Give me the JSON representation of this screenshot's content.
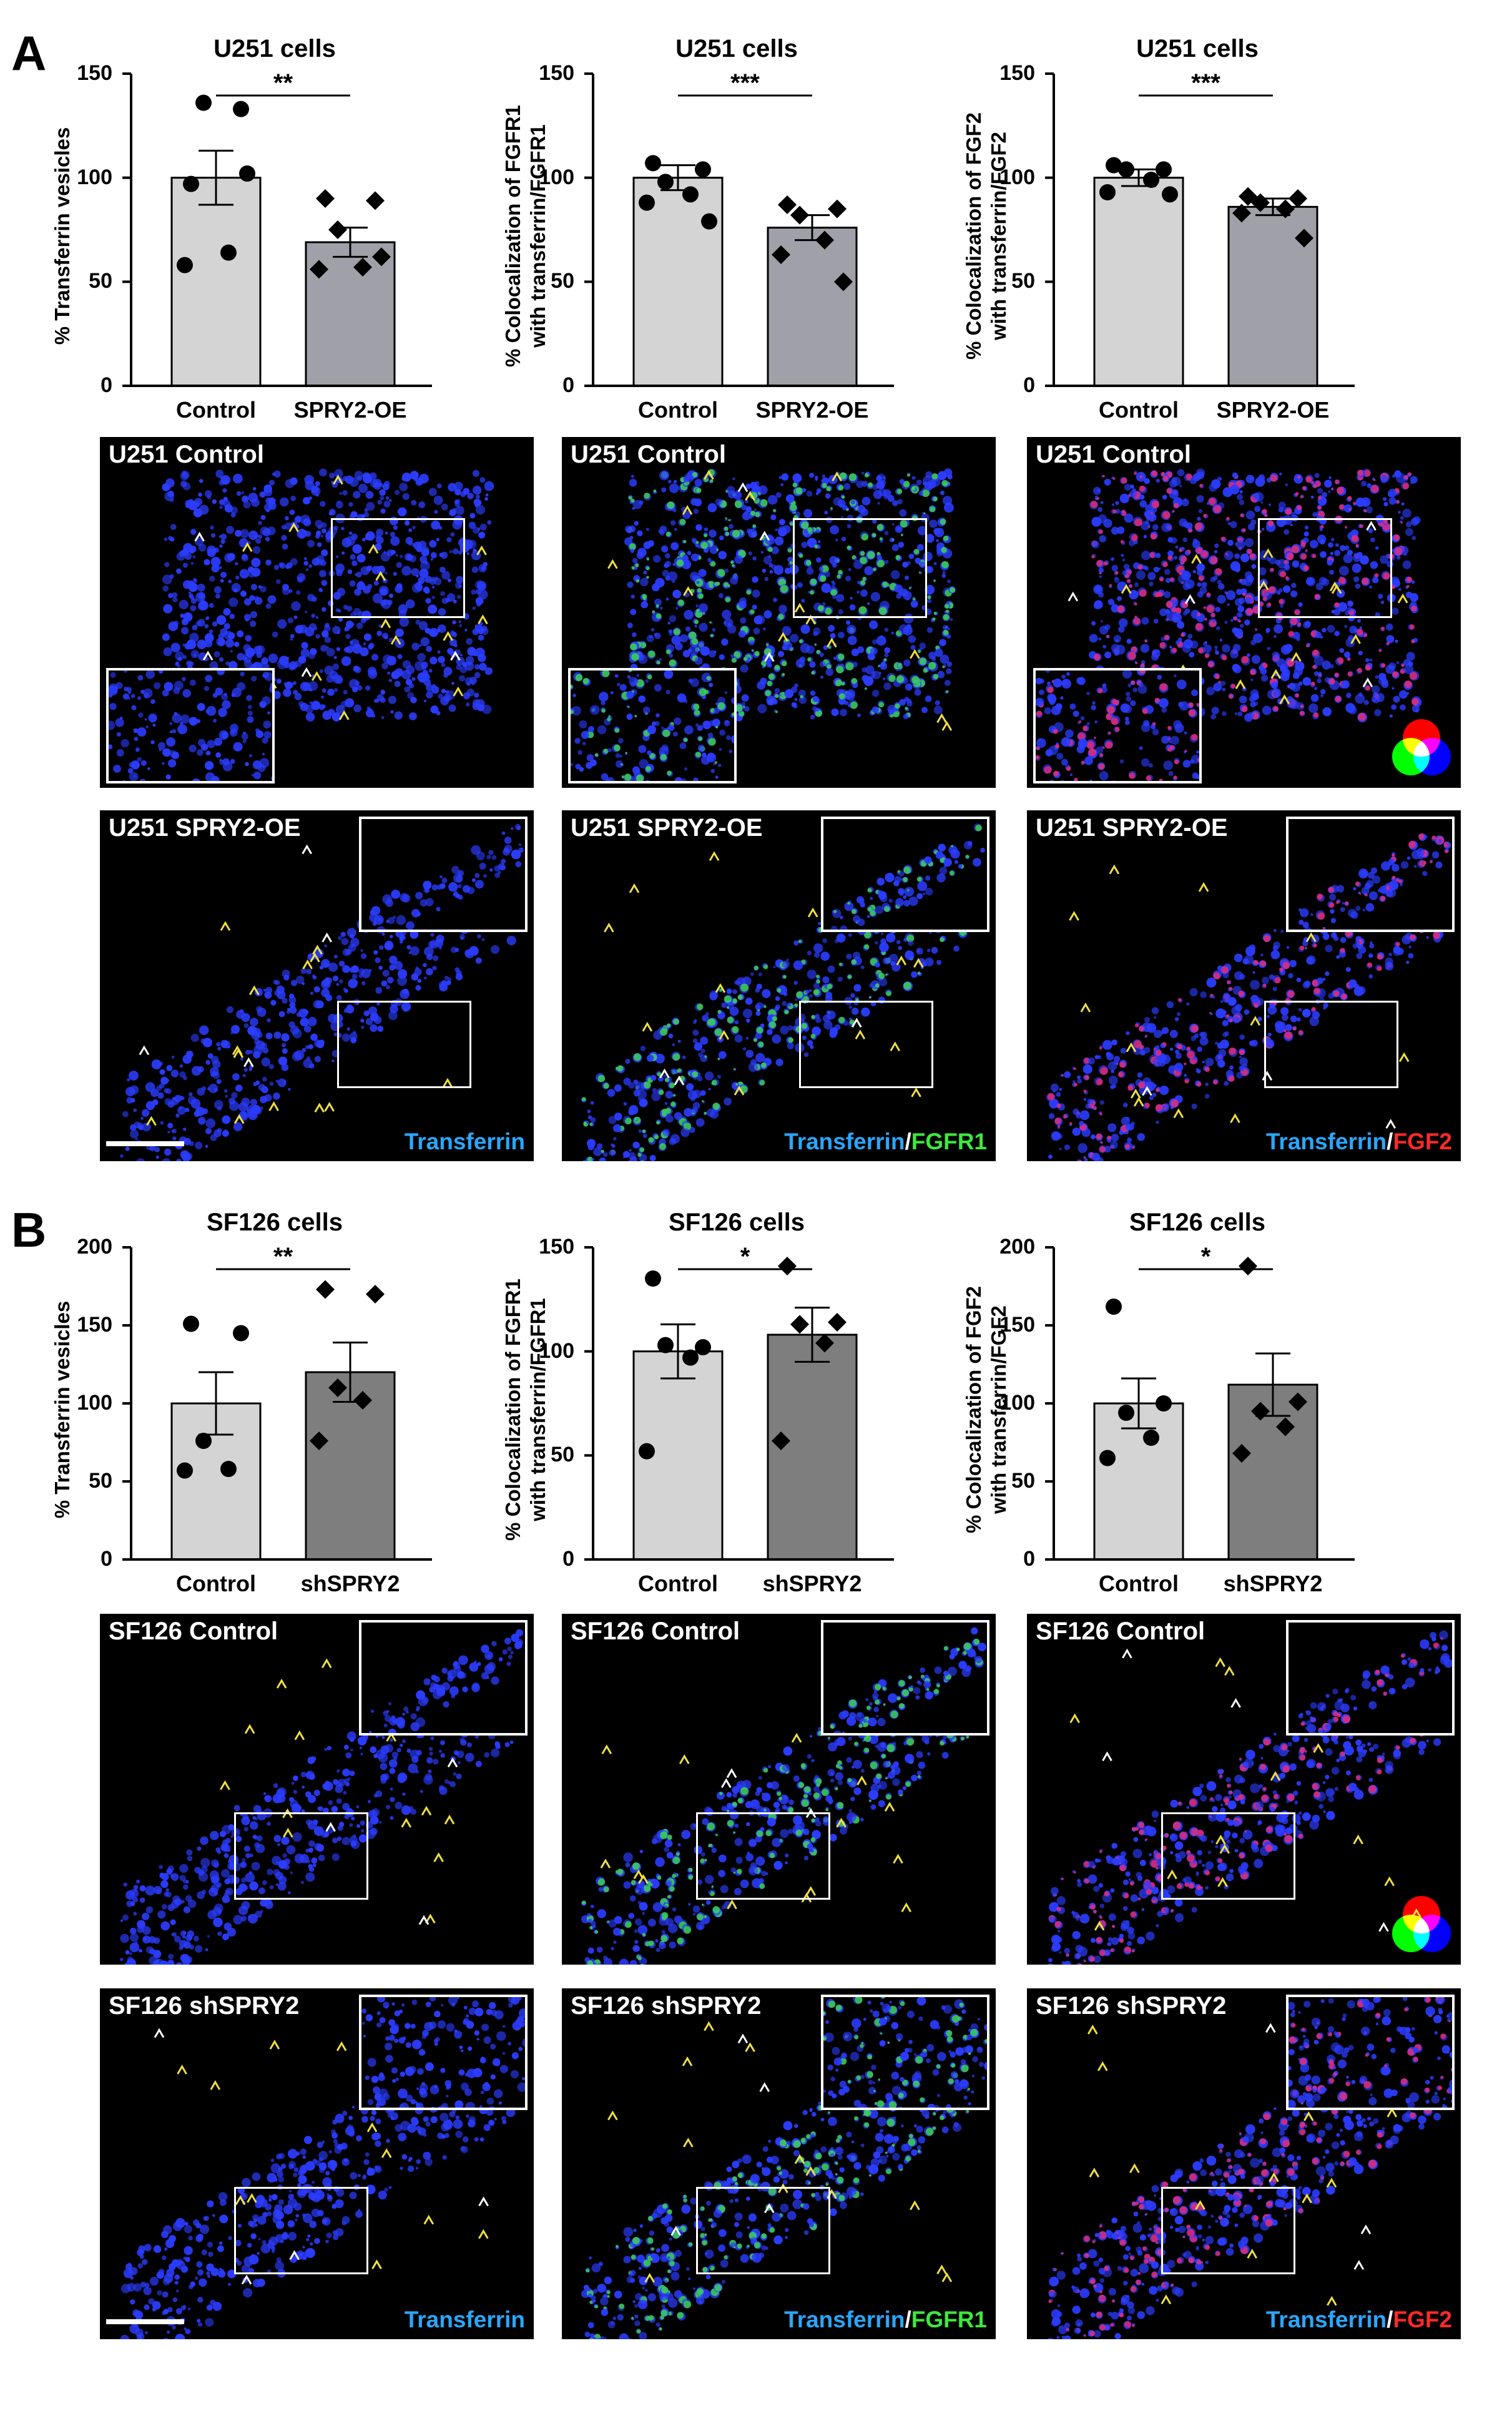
{
  "panels": [
    {
      "letter": "A",
      "charts": [
        {
          "title": "U251 cells",
          "ylabel_1": "% Transferrin vesicles",
          "ylabel_2": "",
          "ticks": [
            "0",
            "50",
            "100",
            "150"
          ],
          "ymax": 150,
          "sig": "**",
          "categories": [
            "Control",
            "SPRY2-OE"
          ],
          "means": [
            100,
            69
          ],
          "sem": [
            13,
            7
          ],
          "control_points": [
            97,
            133,
            136,
            64,
            58,
            102
          ],
          "treat_points": [
            90,
            89,
            75,
            57,
            56,
            62
          ]
        },
        {
          "title": "U251 cells",
          "ylabel_1": "% Colocalization of FGFR1",
          "ylabel_2": "with transferrin/FGFR1",
          "ticks": [
            "0",
            "50",
            "100",
            "150"
          ],
          "ymax": 150,
          "sig": "***",
          "categories": [
            "Control",
            "SPRY2-OE"
          ],
          "means": [
            100,
            76
          ],
          "sem": [
            6,
            6
          ],
          "control_points": [
            107,
            104,
            98,
            92,
            88,
            79
          ],
          "treat_points": [
            87,
            85,
            82,
            70,
            63,
            50
          ]
        },
        {
          "title": "U251 cells",
          "ylabel_1": "% Colocalization of FGF2",
          "ylabel_2": "with transferrin/FGF2",
          "ticks": [
            "0",
            "50",
            "100",
            "150"
          ],
          "ymax": 150,
          "sig": "***",
          "categories": [
            "Control",
            "SPRY2-OE"
          ],
          "means": [
            100,
            86
          ],
          "sem": [
            4,
            4
          ],
          "control_points": [
            106,
            104,
            104,
            99,
            93,
            92
          ],
          "treat_points": [
            91,
            90,
            88,
            85,
            83,
            71
          ]
        }
      ]
    },
    {
      "letter": "B",
      "charts": [
        {
          "title": "SF126 cells",
          "ylabel_1": "% Transferrin vesicles",
          "ylabel_2": "",
          "ticks": [
            "0",
            "50",
            "100",
            "150",
            "200"
          ],
          "ymax": 200,
          "sig": "**",
          "categories": [
            "Control",
            "shSPRY2"
          ],
          "means": [
            100,
            120
          ],
          "sem": [
            20,
            19
          ],
          "control_points": [
            151,
            145,
            76,
            58,
            57
          ],
          "treat_points": [
            173,
            170,
            110,
            102,
            76
          ]
        },
        {
          "title": "SF126 cells",
          "ylabel_1": "% Colocalization of FGFR1",
          "ylabel_2": "with transferrin/FGFR1",
          "ticks": [
            "0",
            "50",
            "100",
            "150"
          ],
          "ymax": 150,
          "sig": "*",
          "categories": [
            "Control",
            "shSPRY2"
          ],
          "means": [
            100,
            108
          ],
          "sem": [
            13,
            13
          ],
          "control_points": [
            135,
            102,
            103,
            97,
            52
          ],
          "treat_points": [
            141,
            114,
            113,
            104,
            57
          ]
        },
        {
          "title": "SF126 cells",
          "ylabel_1": "% Colocalization of FGF2",
          "ylabel_2": "with transferrin/FGF2",
          "ticks": [
            "0",
            "50",
            "100",
            "150",
            "200"
          ],
          "ymax": 200,
          "sig": "*",
          "categories": [
            "Control",
            "shSPRY2"
          ],
          "means": [
            100,
            112
          ],
          "sem": [
            16,
            20
          ],
          "control_points": [
            162,
            100,
            94,
            78,
            65
          ],
          "treat_points": [
            188,
            101,
            95,
            85,
            68
          ]
        }
      ]
    }
  ],
  "images": {
    "u251_control": "U251 Control",
    "u251_oe": "U251 SPRY2-OE",
    "sf126_control": "SF126 Control",
    "sf126_sh": "SF126 shSPRY2",
    "cap_transferrin": "Transferrin",
    "cap_sep": "/",
    "cap_fgfr1": "FGFR1",
    "cap_fgf2": "FGF2"
  },
  "colors": {
    "control_bar": "#d4d4d4",
    "treat_bar_a": "#a0a0a8",
    "treat_bar_b": "#7e7e7e",
    "transferrin": "#2b3cff",
    "fgfr1": "#3ee83e",
    "fgf2": "#ff2a6a"
  }
}
